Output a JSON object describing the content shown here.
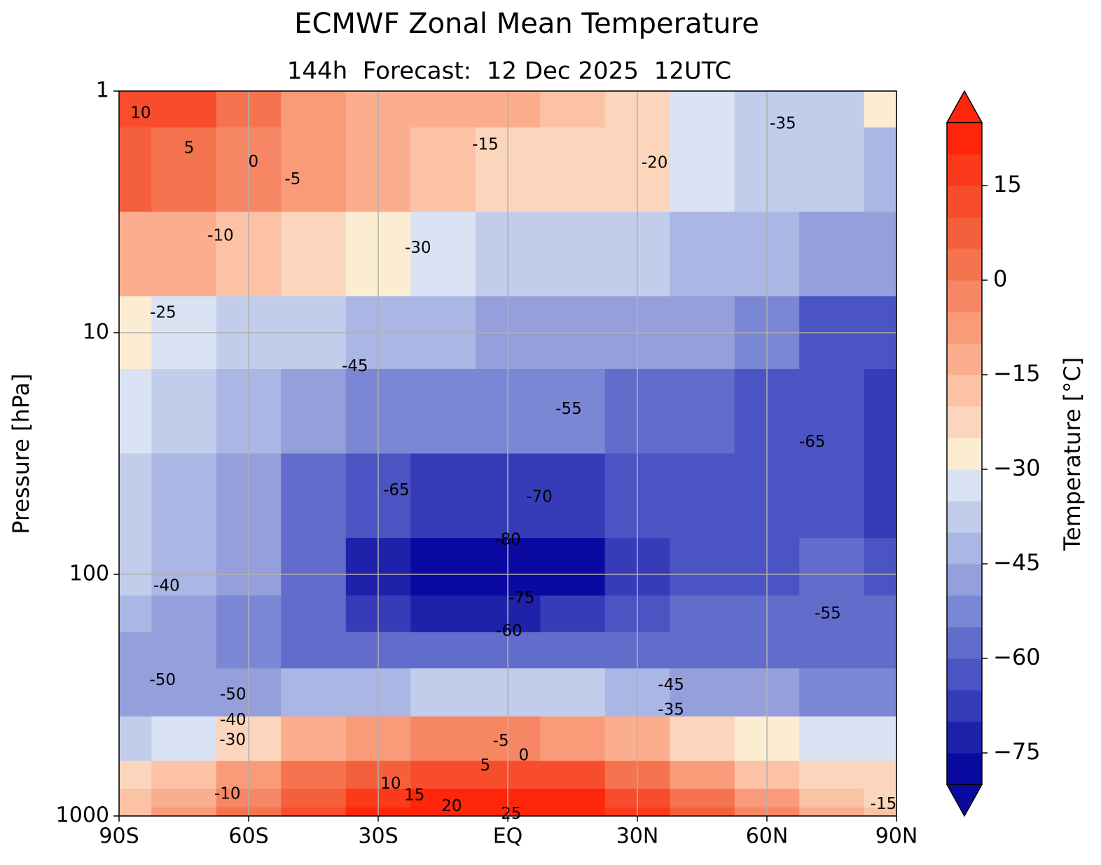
{
  "chart_data": {
    "type": "contourf",
    "title": "ECMWF Zonal Mean Temperature",
    "subtitle": "144h  Forecast:  12 Dec 2025  12UTC",
    "ylabel": "Pressure [hPa]",
    "colorbar_label": "Temperature [°C]",
    "y_log": true,
    "y_inverted": true,
    "grid": true,
    "x": [
      -90,
      -75,
      -60,
      -45,
      -30,
      -15,
      0,
      15,
      30,
      45,
      60,
      75,
      90
    ],
    "y": [
      1,
      2,
      5,
      10,
      20,
      50,
      100,
      150,
      200,
      300,
      500,
      700,
      850,
      1000
    ],
    "z": [
      [
        12,
        10,
        2,
        -8,
        -12,
        -15,
        -14,
        -17,
        -25,
        -32,
        -37,
        -36,
        -30
      ],
      [
        5,
        3,
        -2,
        -7,
        -15,
        -20,
        -22,
        -22,
        -22,
        -33,
        -38,
        -40,
        -42
      ],
      [
        -12,
        -13,
        -17,
        -22,
        -30,
        -35,
        -37,
        -38,
        -36,
        -42,
        -45,
        -47,
        -48
      ],
      [
        -28,
        -32,
        -36,
        -40,
        -44,
        -45,
        -46,
        -46,
        -47,
        -50,
        -55,
        -62,
        -64
      ],
      [
        -35,
        -38,
        -42,
        -48,
        -52,
        -54,
        -55,
        -55,
        -56,
        -58,
        -62,
        -65,
        -67
      ],
      [
        -40,
        -43,
        -47,
        -56,
        -64,
        -67,
        -69,
        -69,
        -64,
        -62,
        -62,
        -64,
        -66
      ],
      [
        -40,
        -44,
        -49,
        -57,
        -73,
        -79,
        -81,
        -79,
        -66,
        -62,
        -61,
        -60,
        -61
      ],
      [
        -44,
        -48,
        -52,
        -58,
        -67,
        -71,
        -72,
        -70,
        -63,
        -60,
        -59,
        -56,
        -58
      ],
      [
        -47,
        -50,
        -54,
        -57,
        -60,
        -60,
        -60,
        -60,
        -58,
        -57,
        -57,
        -56,
        -57
      ],
      [
        -50,
        -49,
        -48,
        -45,
        -42,
        -40,
        -40,
        -40,
        -42,
        -47,
        -50,
        -52,
        -52
      ],
      [
        -36,
        -32,
        -25,
        -15,
        -8,
        -5,
        -5,
        -6,
        -12,
        -22,
        -30,
        -33,
        -35
      ],
      [
        -25,
        -18,
        -10,
        2,
        8,
        10,
        10,
        10,
        3,
        -8,
        -17,
        -22,
        -24
      ],
      [
        -20,
        -12,
        -5,
        6,
        15,
        20,
        22,
        22,
        12,
        0,
        -10,
        -18,
        -22
      ],
      [
        -18,
        -8,
        0,
        10,
        20,
        25,
        27,
        26,
        18,
        5,
        -5,
        -15,
        -20
      ]
    ],
    "xlim": [
      -90,
      90
    ],
    "ylim": [
      1,
      1000
    ],
    "xticks": [
      {
        "value": -90,
        "label": "90S"
      },
      {
        "value": -60,
        "label": "60S"
      },
      {
        "value": -30,
        "label": "30S"
      },
      {
        "value": 0,
        "label": "EQ"
      },
      {
        "value": 30,
        "label": "30N"
      },
      {
        "value": 60,
        "label": "60N"
      },
      {
        "value": 90,
        "label": "90N"
      }
    ],
    "yticks": [
      1,
      10,
      100,
      1000
    ],
    "levels": [
      -80,
      -75,
      -70,
      -65,
      -60,
      -55,
      -50,
      -45,
      -40,
      -35,
      -30,
      -25,
      -20,
      -15,
      -10,
      -5,
      0,
      5,
      10,
      15,
      20,
      25
    ],
    "colors": [
      "#0a0aa0",
      "#1e22ab",
      "#363cb8",
      "#4a54c2",
      "#616ccb",
      "#7a87d4",
      "#949fdb",
      "#aab6e3",
      "#c2cdeb",
      "#d9e3f3",
      "#fcecd2",
      "#fcd6bc",
      "#fcc2a5",
      "#fbae8e",
      "#f99a78",
      "#f78664",
      "#f5734f",
      "#f5603c",
      "#f84d2c",
      "#fb3a1b",
      "#ff250a"
    ],
    "colorbar_ticks": [
      15,
      0,
      {
        "value": -15,
        "label": "−15"
      },
      {
        "value": -30,
        "label": "−30"
      },
      {
        "value": -45,
        "label": "−45"
      },
      {
        "value": -60,
        "label": "−60"
      },
      {
        "value": -75,
        "label": "−75"
      }
    ],
    "contour_labels": [
      {
        "value": 10,
        "x": -85,
        "y": 1.24
      },
      {
        "value": 5,
        "x": -73.8,
        "y": 1.73
      },
      {
        "value": 0,
        "x": -58.9,
        "y": 1.97
      },
      {
        "value": -5,
        "x": -49.8,
        "y": 2.33
      },
      {
        "value": -10,
        "x": -66.5,
        "y": 3.98
      },
      {
        "value": -15,
        "x": -5.2,
        "y": 1.67
      },
      {
        "value": -20,
        "x": 34,
        "y": 1.99
      },
      {
        "value": -30,
        "x": -20.8,
        "y": 4.48
      },
      {
        "value": -35,
        "x": 63.7,
        "y": 1.37
      },
      {
        "value": -25,
        "x": -79.8,
        "y": 8.3
      },
      {
        "value": -45,
        "x": -35.4,
        "y": 13.8
      },
      {
        "value": -55,
        "x": 14.1,
        "y": 20.8
      },
      {
        "value": -65,
        "x": 70.5,
        "y": 28.4
      },
      {
        "value": -65,
        "x": -25.8,
        "y": 45
      },
      {
        "value": -70,
        "x": 7.3,
        "y": 48
      },
      {
        "value": -80,
        "x": 0,
        "y": 72
      },
      {
        "value": -75,
        "x": 3.2,
        "y": 126
      },
      {
        "value": -60,
        "x": 0.3,
        "y": 172
      },
      {
        "value": -40,
        "x": -79,
        "y": 112
      },
      {
        "value": -55,
        "x": 74.1,
        "y": 146
      },
      {
        "value": -50,
        "x": -79.9,
        "y": 275
      },
      {
        "value": -50,
        "x": -63.6,
        "y": 315
      },
      {
        "value": -45,
        "x": 37.8,
        "y": 288
      },
      {
        "value": -35,
        "x": 37.8,
        "y": 365
      },
      {
        "value": -40,
        "x": -63.6,
        "y": 402
      },
      {
        "value": -30,
        "x": -63.7,
        "y": 487
      },
      {
        "value": -5,
        "x": -1.6,
        "y": 491
      },
      {
        "value": 0,
        "x": 3.7,
        "y": 563
      },
      {
        "value": 5,
        "x": -5.2,
        "y": 620
      },
      {
        "value": 10,
        "x": -27.1,
        "y": 737
      },
      {
        "value": 15,
        "x": -21.6,
        "y": 823
      },
      {
        "value": 20,
        "x": -13,
        "y": 915
      },
      {
        "value": 25,
        "x": 0.8,
        "y": 983
      },
      {
        "value": -10,
        "x": -64.9,
        "y": 812
      },
      {
        "value": -15,
        "x": 87,
        "y": 897
      }
    ]
  }
}
